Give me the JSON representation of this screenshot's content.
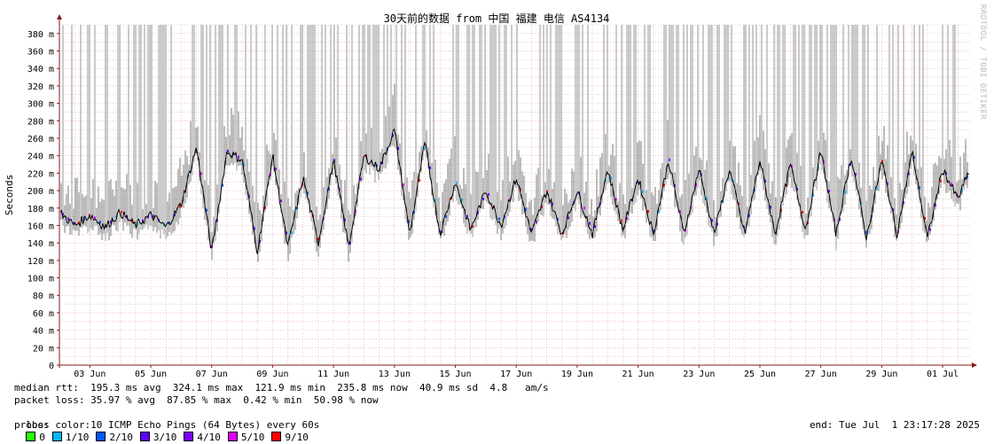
{
  "chart_data": {
    "type": "line",
    "title": "30天前的数据 from 中国 福建 电信 AS4134",
    "ylabel": "Seconds",
    "ylim": [
      0,
      390
    ],
    "yticks": [
      0,
      20,
      40,
      60,
      80,
      100,
      120,
      140,
      160,
      180,
      200,
      220,
      240,
      260,
      280,
      300,
      320,
      340,
      360,
      380
    ],
    "ytick_labels": [
      "0",
      "20 m",
      "40 m",
      "60 m",
      "80 m",
      "100 m",
      "120 m",
      "140 m",
      "160 m",
      "180 m",
      "200 m",
      "220 m",
      "240 m",
      "260 m",
      "280 m",
      "300 m",
      "320 m",
      "340 m",
      "360 m",
      "380 m"
    ],
    "xlim": [
      1.0,
      30.9
    ],
    "xticks": [
      2,
      4,
      6,
      8,
      10,
      12,
      14,
      16,
      18,
      20,
      22,
      24,
      26,
      28,
      30
    ],
    "xtick_labels": [
      "03 Jun",
      "05 Jun",
      "07 Jun",
      "09 Jun",
      "11 Jun",
      "13 Jun",
      "15 Jun",
      "17 Jun",
      "19 Jun",
      "21 Jun",
      "23 Jun",
      "25 Jun",
      "27 Jun",
      "29 Jun",
      "01 Jul"
    ],
    "series": [
      {
        "x": [
          1.0,
          1.5,
          2.0,
          2.5,
          3.0,
          3.5,
          4.0,
          4.5,
          5.0,
          5.5,
          6.0,
          6.5,
          7.0,
          7.5,
          8.0,
          8.5,
          9.0,
          9.5,
          10.0,
          10.5,
          11.0,
          11.5,
          12.0,
          12.5,
          13.0,
          13.5,
          14.0,
          14.5,
          15.0,
          15.5,
          16.0,
          16.5,
          17.0,
          17.5,
          18.0,
          18.5,
          19.0,
          19.5,
          20.0,
          20.5,
          21.0,
          21.5,
          22.0,
          22.5,
          23.0,
          23.5,
          24.0,
          24.5,
          25.0,
          25.5,
          26.0,
          26.5,
          27.0,
          27.5,
          28.0,
          28.5,
          29.0,
          29.5,
          30.0,
          30.5,
          30.9
        ],
        "y": [
          175,
          160,
          172,
          158,
          175,
          160,
          172,
          158,
          185,
          250,
          130,
          245,
          235,
          130,
          240,
          135,
          215,
          140,
          235,
          135,
          240,
          225,
          270,
          150,
          255,
          150,
          210,
          155,
          200,
          160,
          215,
          150,
          200,
          150,
          200,
          150,
          225,
          155,
          215,
          150,
          235,
          150,
          225,
          150,
          225,
          150,
          235,
          150,
          230,
          155,
          245,
          150,
          240,
          145,
          235,
          150,
          245,
          145,
          225,
          190,
          225
        ]
      }
    ]
  },
  "legend": {
    "median_rtt": "median rtt:  195.3 ms avg  324.1 ms max  121.9 ms min  235.8 ms now  40.9 ms sd  4.8   am/s",
    "packet_loss": "packet loss: 35.97 % avg  87.85 % max  0.42 % min  50.98 % now",
    "loss_color_label": "loss color:",
    "loss_colors": [
      {
        "label": "0",
        "color": "#26ff00"
      },
      {
        "label": "1/10",
        "color": "#00b8ff"
      },
      {
        "label": "2/10",
        "color": "#0059ff"
      },
      {
        "label": "3/10",
        "color": "#5e00ff"
      },
      {
        "label": "4/10",
        "color": "#7e00ff"
      },
      {
        "label": "5/10",
        "color": "#dd00ff"
      },
      {
        "label": "9/10",
        "color": "#ff0000"
      }
    ],
    "probe": "probe:       10 ICMP Echo Pings (64 Bytes) every 60s",
    "end": "end: Tue Jul  1 23:17:28 2025"
  },
  "watermark": "RRDTOOL / TOBI OETIKER",
  "colors": {
    "grid": "#e8a0a0",
    "axis": "#8b1a1a",
    "smoke": "#a8a8a8",
    "line": "#000000"
  }
}
